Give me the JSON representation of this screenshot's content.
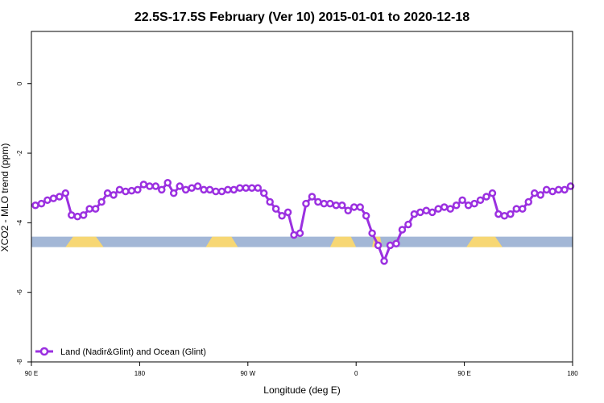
{
  "chart_data": {
    "type": "line",
    "title": "22.5S-17.5S February (Ver 10)   2015-01-01 to 2020-12-18",
    "xlabel": "Longitude (deg E)",
    "ylabel": "XCO2 - MLO trend (ppm)",
    "xlim": [
      -90,
      180
    ],
    "ylim": [
      -8.0,
      1.5
    ],
    "x_tick_positions": [
      -90,
      -36,
      18,
      72,
      126,
      180
    ],
    "x_tick_labels": [
      "90 E",
      "180",
      "90 W",
      "0",
      "90 E",
      "180"
    ],
    "y_ticks": [
      0,
      -2,
      -4,
      -6,
      -8
    ],
    "y_tick_labels": [
      "0",
      "-2",
      "-4",
      "-6",
      "-8"
    ],
    "grid": false,
    "legend_position": "bottom-left",
    "series": [
      {
        "name": "Land (Nadir&Glint) and Ocean (Glint)",
        "color": "#9b30e0",
        "x": [
          -88,
          -85,
          -82,
          -79,
          -76,
          -73,
          -70,
          -67,
          -64,
          -61,
          -58,
          -55,
          -52,
          -49,
          -46,
          -43,
          -40,
          -37,
          -34,
          -31,
          -28,
          -25,
          -22,
          -19,
          -16,
          -13,
          -10,
          -7,
          -4,
          -1,
          2,
          5,
          8,
          11,
          14,
          17,
          20,
          23,
          26,
          29,
          32,
          35,
          38,
          41,
          44,
          47,
          50,
          53,
          56,
          59,
          62,
          65,
          68,
          71,
          74,
          77,
          80,
          83,
          86,
          89,
          92,
          95,
          98,
          101,
          104,
          107,
          110,
          113,
          116,
          119,
          122,
          125,
          128,
          131,
          134,
          137,
          140,
          143,
          146,
          149,
          152,
          155,
          158,
          161,
          164,
          167,
          170,
          173,
          176,
          179
        ],
        "y": [
          -3.5,
          -3.45,
          -3.35,
          -3.3,
          -3.25,
          -3.15,
          -3.78,
          -3.82,
          -3.78,
          -3.6,
          -3.6,
          -3.4,
          -3.15,
          -3.2,
          -3.05,
          -3.1,
          -3.08,
          -3.05,
          -2.9,
          -2.95,
          -2.95,
          -3.05,
          -2.85,
          -3.15,
          -2.95,
          -3.05,
          -3.0,
          -2.95,
          -3.05,
          -3.05,
          -3.1,
          -3.1,
          -3.05,
          -3.05,
          -3.0,
          -3.0,
          -3.0,
          -3.0,
          -3.15,
          -3.4,
          -3.6,
          -3.8,
          -3.7,
          -4.35,
          -4.3,
          -3.45,
          -3.25,
          -3.4,
          -3.45,
          -3.45,
          -3.5,
          -3.5,
          -3.65,
          -3.55,
          -3.55,
          -3.8,
          -4.3,
          -4.65,
          -5.1,
          -4.65,
          -4.6,
          -4.2,
          -4.05,
          -3.75,
          -3.7,
          -3.65,
          -3.7,
          -3.6,
          -3.55,
          -3.6,
          -3.5,
          -3.35,
          -3.5,
          -3.45,
          -3.35,
          -3.25,
          -3.15,
          -3.75,
          -3.8,
          -3.75,
          -3.6,
          -3.6,
          -3.4,
          -3.15,
          -3.2,
          -3.05,
          -3.1,
          -3.05,
          -3.05,
          -2.95
        ]
      }
    ],
    "surface_band": {
      "y_center": -4.55,
      "y_half_width": 0.15,
      "ocean_color": "#a3b7d6",
      "land_color": "#f7d774",
      "land_segments": [
        [
          -73,
          -54
        ],
        [
          -3,
          13
        ],
        [
          59,
          72
        ],
        [
          80,
          85
        ],
        [
          127,
          145
        ]
      ]
    }
  }
}
